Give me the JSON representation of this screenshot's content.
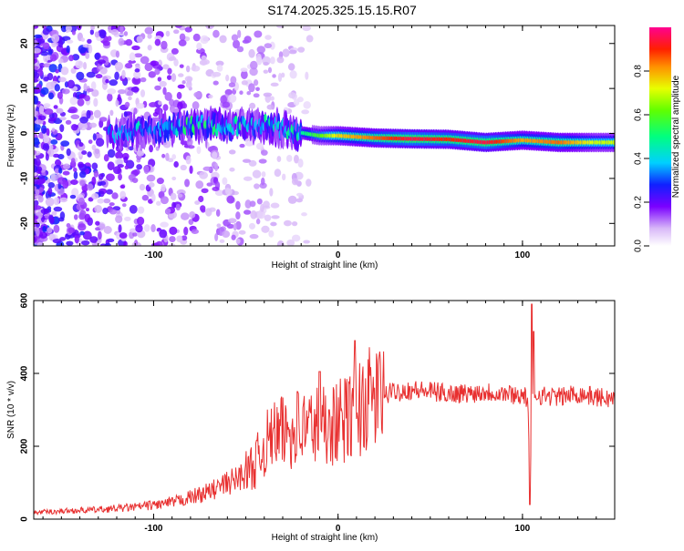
{
  "figure_title": "S174.2025.325.15.15.R07",
  "chart_data": [
    {
      "type": "heatmap",
      "title": "S174.2025.325.15.15.R07",
      "xlabel": "Height of straight line (km)",
      "ylabel": "Frequency (Hz)",
      "xlim": [
        -165,
        150
      ],
      "ylim": [
        -25,
        24
      ],
      "x_ticks": [
        -100,
        0,
        100
      ],
      "y_ticks": [
        -20,
        -10,
        0,
        10,
        20
      ],
      "colorbar": {
        "label": "Normalized spectral amplitude",
        "range": [
          0,
          1
        ],
        "ticks": [
          0.0,
          0.2,
          0.4,
          0.6,
          0.8
        ],
        "tick_labels": [
          "0.0",
          "0.2",
          "0.4",
          "0.6",
          "0.8"
        ]
      },
      "ridge": {
        "description_points_km_hz_amp": [
          [
            -120,
            0.0,
            0.3
          ],
          [
            -100,
            0.8,
            0.35
          ],
          [
            -80,
            2.0,
            0.4
          ],
          [
            -60,
            1.5,
            0.4
          ],
          [
            -40,
            2.0,
            0.35
          ],
          [
            -25,
            0.5,
            0.4
          ],
          [
            -10,
            -0.5,
            0.6
          ],
          [
            0,
            -0.5,
            0.75
          ],
          [
            20,
            -1.0,
            0.85
          ],
          [
            40,
            -1.2,
            0.95
          ],
          [
            60,
            -1.3,
            0.9
          ],
          [
            80,
            -2.0,
            0.95
          ],
          [
            100,
            -1.5,
            0.8
          ],
          [
            120,
            -2.0,
            0.85
          ],
          [
            140,
            -2.0,
            0.7
          ]
        ]
      }
    },
    {
      "type": "line",
      "xlabel": "Height of straight line (km)",
      "ylabel": "SNR (10 * v/v)",
      "xlim": [
        -165,
        150
      ],
      "ylim": [
        0,
        600
      ],
      "x_ticks": [
        -100,
        0,
        100
      ],
      "y_ticks": [
        0,
        200,
        400,
        600
      ],
      "series": [
        {
          "name": "SNR",
          "color": "#e83030",
          "x": [
            -165,
            -150,
            -130,
            -110,
            -90,
            -70,
            -55,
            -45,
            -40,
            -35,
            -30,
            -25,
            -20,
            -15,
            -10,
            -5,
            0,
            5,
            10,
            15,
            20,
            25,
            30,
            40,
            50,
            60,
            70,
            80,
            90,
            100,
            103,
            104,
            105,
            106,
            108,
            110,
            120,
            130,
            140,
            150
          ],
          "y": [
            18,
            22,
            26,
            33,
            45,
            75,
            110,
            150,
            200,
            225,
            235,
            245,
            250,
            255,
            260,
            262,
            265,
            275,
            300,
            320,
            335,
            340,
            350,
            355,
            350,
            345,
            345,
            350,
            345,
            340,
            330,
            50,
            300,
            340,
            345,
            340,
            335,
            345,
            335,
            330
          ],
          "spikes": [
            [
              -35,
              250
            ],
            [
              -22,
              350
            ],
            [
              -10,
              405
            ],
            [
              -5,
              300
            ],
            [
              9,
              490
            ],
            [
              105,
              590
            ],
            [
              106,
              515
            ],
            [
              104,
              40
            ]
          ]
        }
      ]
    }
  ]
}
